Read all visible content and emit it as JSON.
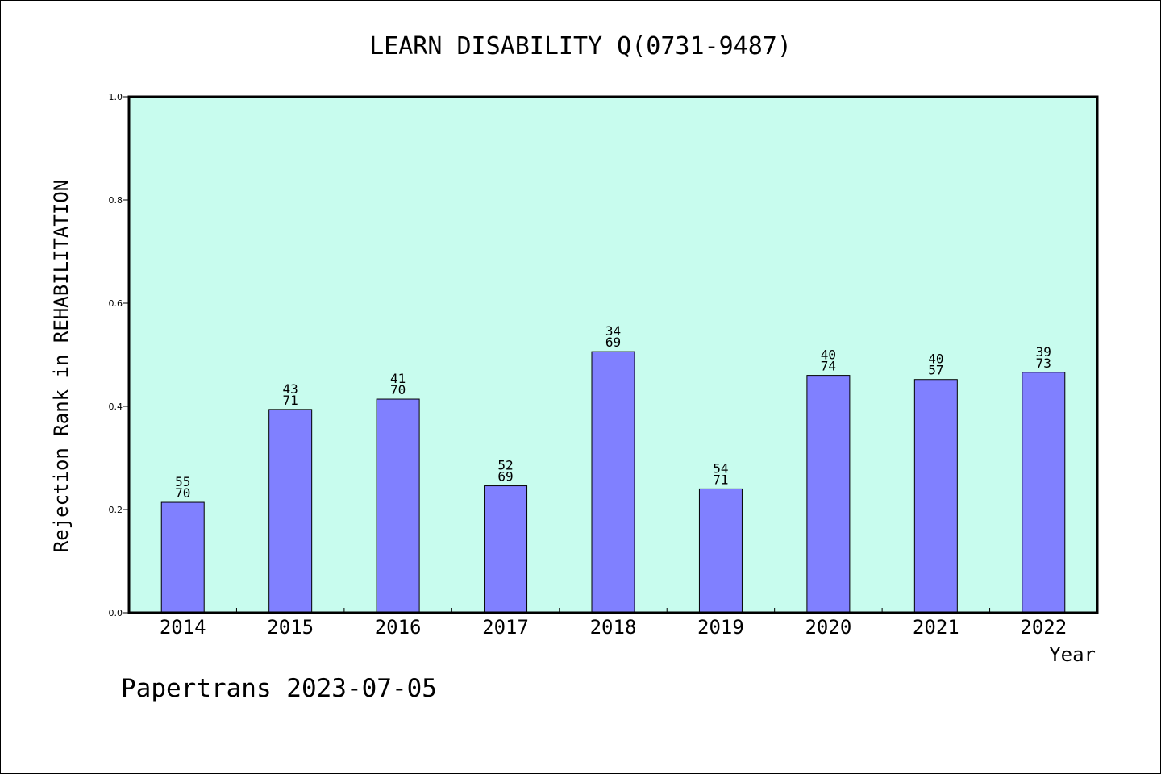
{
  "chart_data": {
    "type": "bar",
    "title": "LEARN DISABILITY Q(0731-9487)",
    "xlabel": "Year",
    "ylabel": "Rejection Rank in REHABILITATION",
    "ylim": [
      0,
      1.0
    ],
    "yticks": [
      "0.0",
      "0.2",
      "0.4",
      "0.6",
      "0.8",
      "1.0"
    ],
    "categories": [
      "2014",
      "2015",
      "2016",
      "2017",
      "2018",
      "2019",
      "2020",
      "2021",
      "2022"
    ],
    "values": [
      0.214,
      0.394,
      0.414,
      0.246,
      0.506,
      0.24,
      0.46,
      0.452,
      0.466
    ],
    "rank_labels": [
      "55",
      "43",
      "41",
      "52",
      "34",
      "54",
      "40",
      "40",
      "39"
    ],
    "total_labels": [
      "70",
      "71",
      "70",
      "69",
      "69",
      "71",
      "74",
      "57",
      "73"
    ],
    "grid": false,
    "colors": {
      "plot_background": "#c8fcee",
      "bar": "#8080ff"
    }
  },
  "footer": {
    "credit": "Papertrans 2023-07-05"
  }
}
